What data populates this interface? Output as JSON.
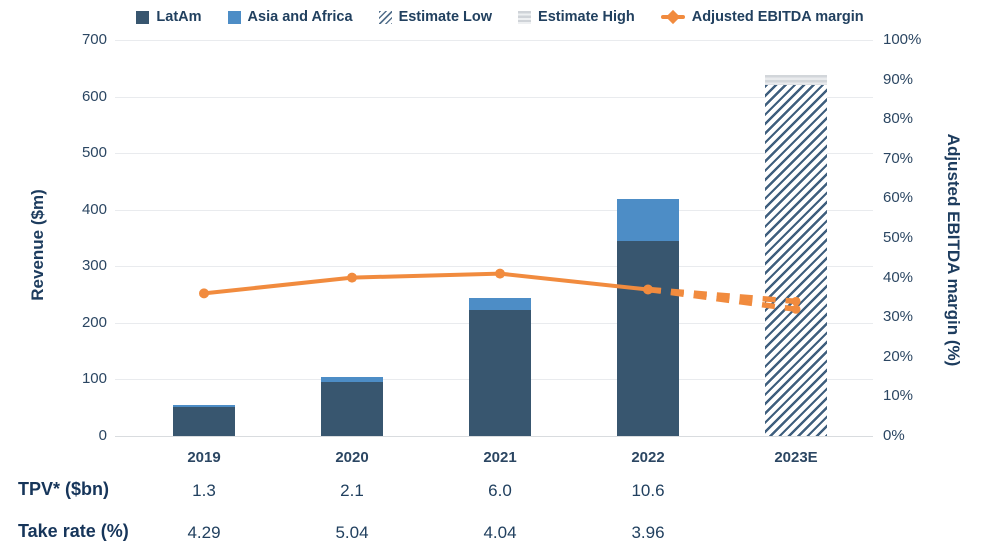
{
  "legend": {
    "items": [
      {
        "label": "LatAm",
        "swatch": "latam"
      },
      {
        "label": "Asia and Africa",
        "swatch": "asia"
      },
      {
        "label": "Estimate Low",
        "swatch": "hatch"
      },
      {
        "label": "Estimate High",
        "swatch": "gray"
      },
      {
        "label": "Adjusted EBITDA margin",
        "swatch": "line"
      }
    ]
  },
  "chart_data": {
    "type": "combo-stacked-bar-line",
    "categories": [
      "2019",
      "2020",
      "2021",
      "2022",
      "2023E"
    ],
    "series": [
      {
        "name": "LatAm",
        "type": "bar",
        "style": "solid-0",
        "values": [
          52,
          96,
          222,
          345,
          null
        ]
      },
      {
        "name": "Asia and Africa",
        "type": "bar",
        "style": "solid-1",
        "values": [
          3,
          8,
          22,
          74,
          null
        ]
      },
      {
        "name": "Estimate Low",
        "type": "bar",
        "style": "hatch",
        "values": [
          null,
          null,
          null,
          null,
          620
        ]
      },
      {
        "name": "Estimate High",
        "type": "bar",
        "style": "gray",
        "values": [
          null,
          null,
          null,
          null,
          18
        ]
      },
      {
        "name": "Adjusted EBITDA margin",
        "type": "line",
        "axis": "right",
        "values_pct": [
          36,
          40,
          41,
          37,
          null
        ],
        "estimate": {
          "from_index": 3,
          "to_index": 4,
          "high_pct": 34,
          "low_pct": 32
        },
        "color": "#f18b3e"
      }
    ],
    "left_axis": {
      "title": "Revenue ($m)",
      "min": 0,
      "max": 700,
      "step": 100,
      "tick_labels": [
        "0",
        "100",
        "200",
        "300",
        "400",
        "500",
        "600",
        "700"
      ]
    },
    "right_axis": {
      "title": "Adjusted EBITDA margin (%)",
      "min": 0,
      "max": 100,
      "step": 10,
      "tick_labels": [
        "0%",
        "10%",
        "20%",
        "30%",
        "40%",
        "50%",
        "60%",
        "70%",
        "80%",
        "90%",
        "100%"
      ]
    },
    "grid": "horizontal-only",
    "legend_position": "top"
  },
  "table": {
    "rows": [
      {
        "label": "TPV* ($bn)",
        "values": [
          "1.3",
          "2.1",
          "6.0",
          "10.6",
          ""
        ]
      },
      {
        "label": "Take rate (%)",
        "values": [
          "4.29",
          "5.04",
          "4.04",
          "3.96",
          ""
        ]
      }
    ]
  },
  "colors": {
    "latam": "#38566f",
    "asia_africa": "#4d8dc6",
    "estimate_hatch_stroke": "#3f5f7e",
    "estimate_gray": "#d2d6da",
    "ebitda_line": "#f18b3e",
    "text_navy": "#21405f",
    "gridline": "#e9ebee"
  }
}
